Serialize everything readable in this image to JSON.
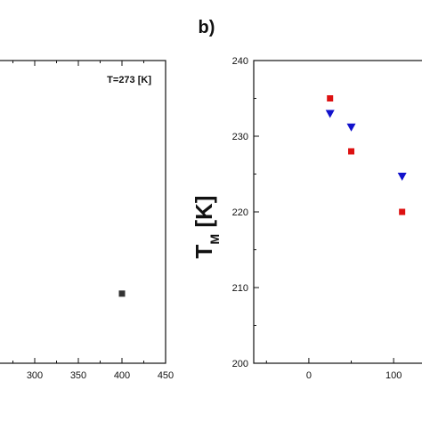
{
  "panel_label": "b)",
  "chart_data": [
    {
      "type": "scatter",
      "annotation": "T=273 [K]",
      "xlim": [
        250,
        450
      ],
      "xticks": [
        300,
        350,
        400,
        450
      ],
      "xtick_labels": [
        "300",
        "350",
        "400",
        "450"
      ],
      "ylim": [
        0,
        1
      ],
      "series": [
        {
          "color": "#333333",
          "marker": "square",
          "x": [
            400
          ],
          "y": [
            0.23
          ]
        }
      ]
    },
    {
      "type": "scatter",
      "title": "b)",
      "ylabel": "T",
      "ylabel_sub": "M",
      "ylabel_unit": " [K]",
      "xlim": [
        -65,
        145
      ],
      "ylim": [
        200,
        240
      ],
      "xticks": [
        0,
        100
      ],
      "xtick_labels": [
        "0",
        "100"
      ],
      "yticks": [
        200,
        210,
        220,
        230,
        240
      ],
      "ytick_labels": [
        "200",
        "210",
        "220",
        "230",
        "240"
      ],
      "series": [
        {
          "color": "#dd1111",
          "marker": "square",
          "x": [
            25,
            50,
            110
          ],
          "y": [
            235,
            228,
            220
          ]
        },
        {
          "color": "#1111cc",
          "marker": "triangle-down",
          "x": [
            25,
            50,
            110
          ],
          "y": [
            233,
            231.2,
            224.7
          ]
        }
      ]
    }
  ]
}
